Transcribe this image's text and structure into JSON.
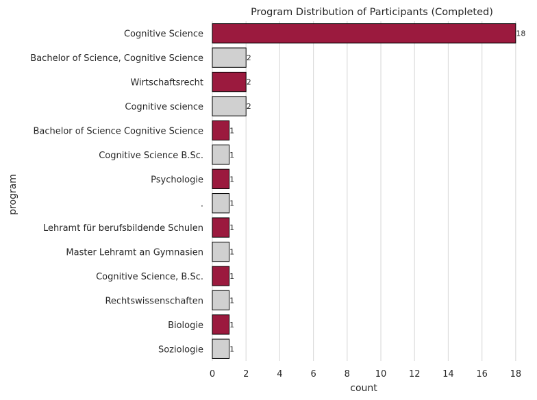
{
  "chart_data": {
    "type": "bar",
    "orientation": "horizontal",
    "title": "Program Distribution of Participants (Completed)",
    "xlabel": "count",
    "ylabel": "program",
    "categories": [
      "Cognitive Science",
      "Bachelor of Science, Cognitive Science",
      "Wirtschaftsrecht",
      "Cognitive science",
      "Bachelor of Science Cognitive Science",
      "Cognitive Science B.Sc.",
      "Psychologie",
      ".",
      "Lehramt für berufsbildende Schulen",
      "Master Lehramt an Gymnasien",
      "Cognitive Science, B.Sc.",
      "Rechtswissenschaften",
      "Biologie",
      "Soziologie"
    ],
    "values": [
      18,
      2,
      2,
      2,
      1,
      1,
      1,
      1,
      1,
      1,
      1,
      1,
      1,
      1
    ],
    "data_labels": [
      "18",
      "2",
      "2",
      "2",
      "1",
      "1",
      "1",
      "1",
      "1",
      "1",
      "1",
      "1",
      "1",
      "1"
    ],
    "xlim": [
      0,
      18.9
    ],
    "xticks": [
      0,
      2,
      4,
      6,
      8,
      10,
      12,
      14,
      16,
      18
    ],
    "grid": "vertical",
    "legend": "none",
    "colors": {
      "primary": "#9b1a3e",
      "secondary": "#d0d0d0",
      "edge": "#000000",
      "grid": "#dcdcdc"
    }
  }
}
